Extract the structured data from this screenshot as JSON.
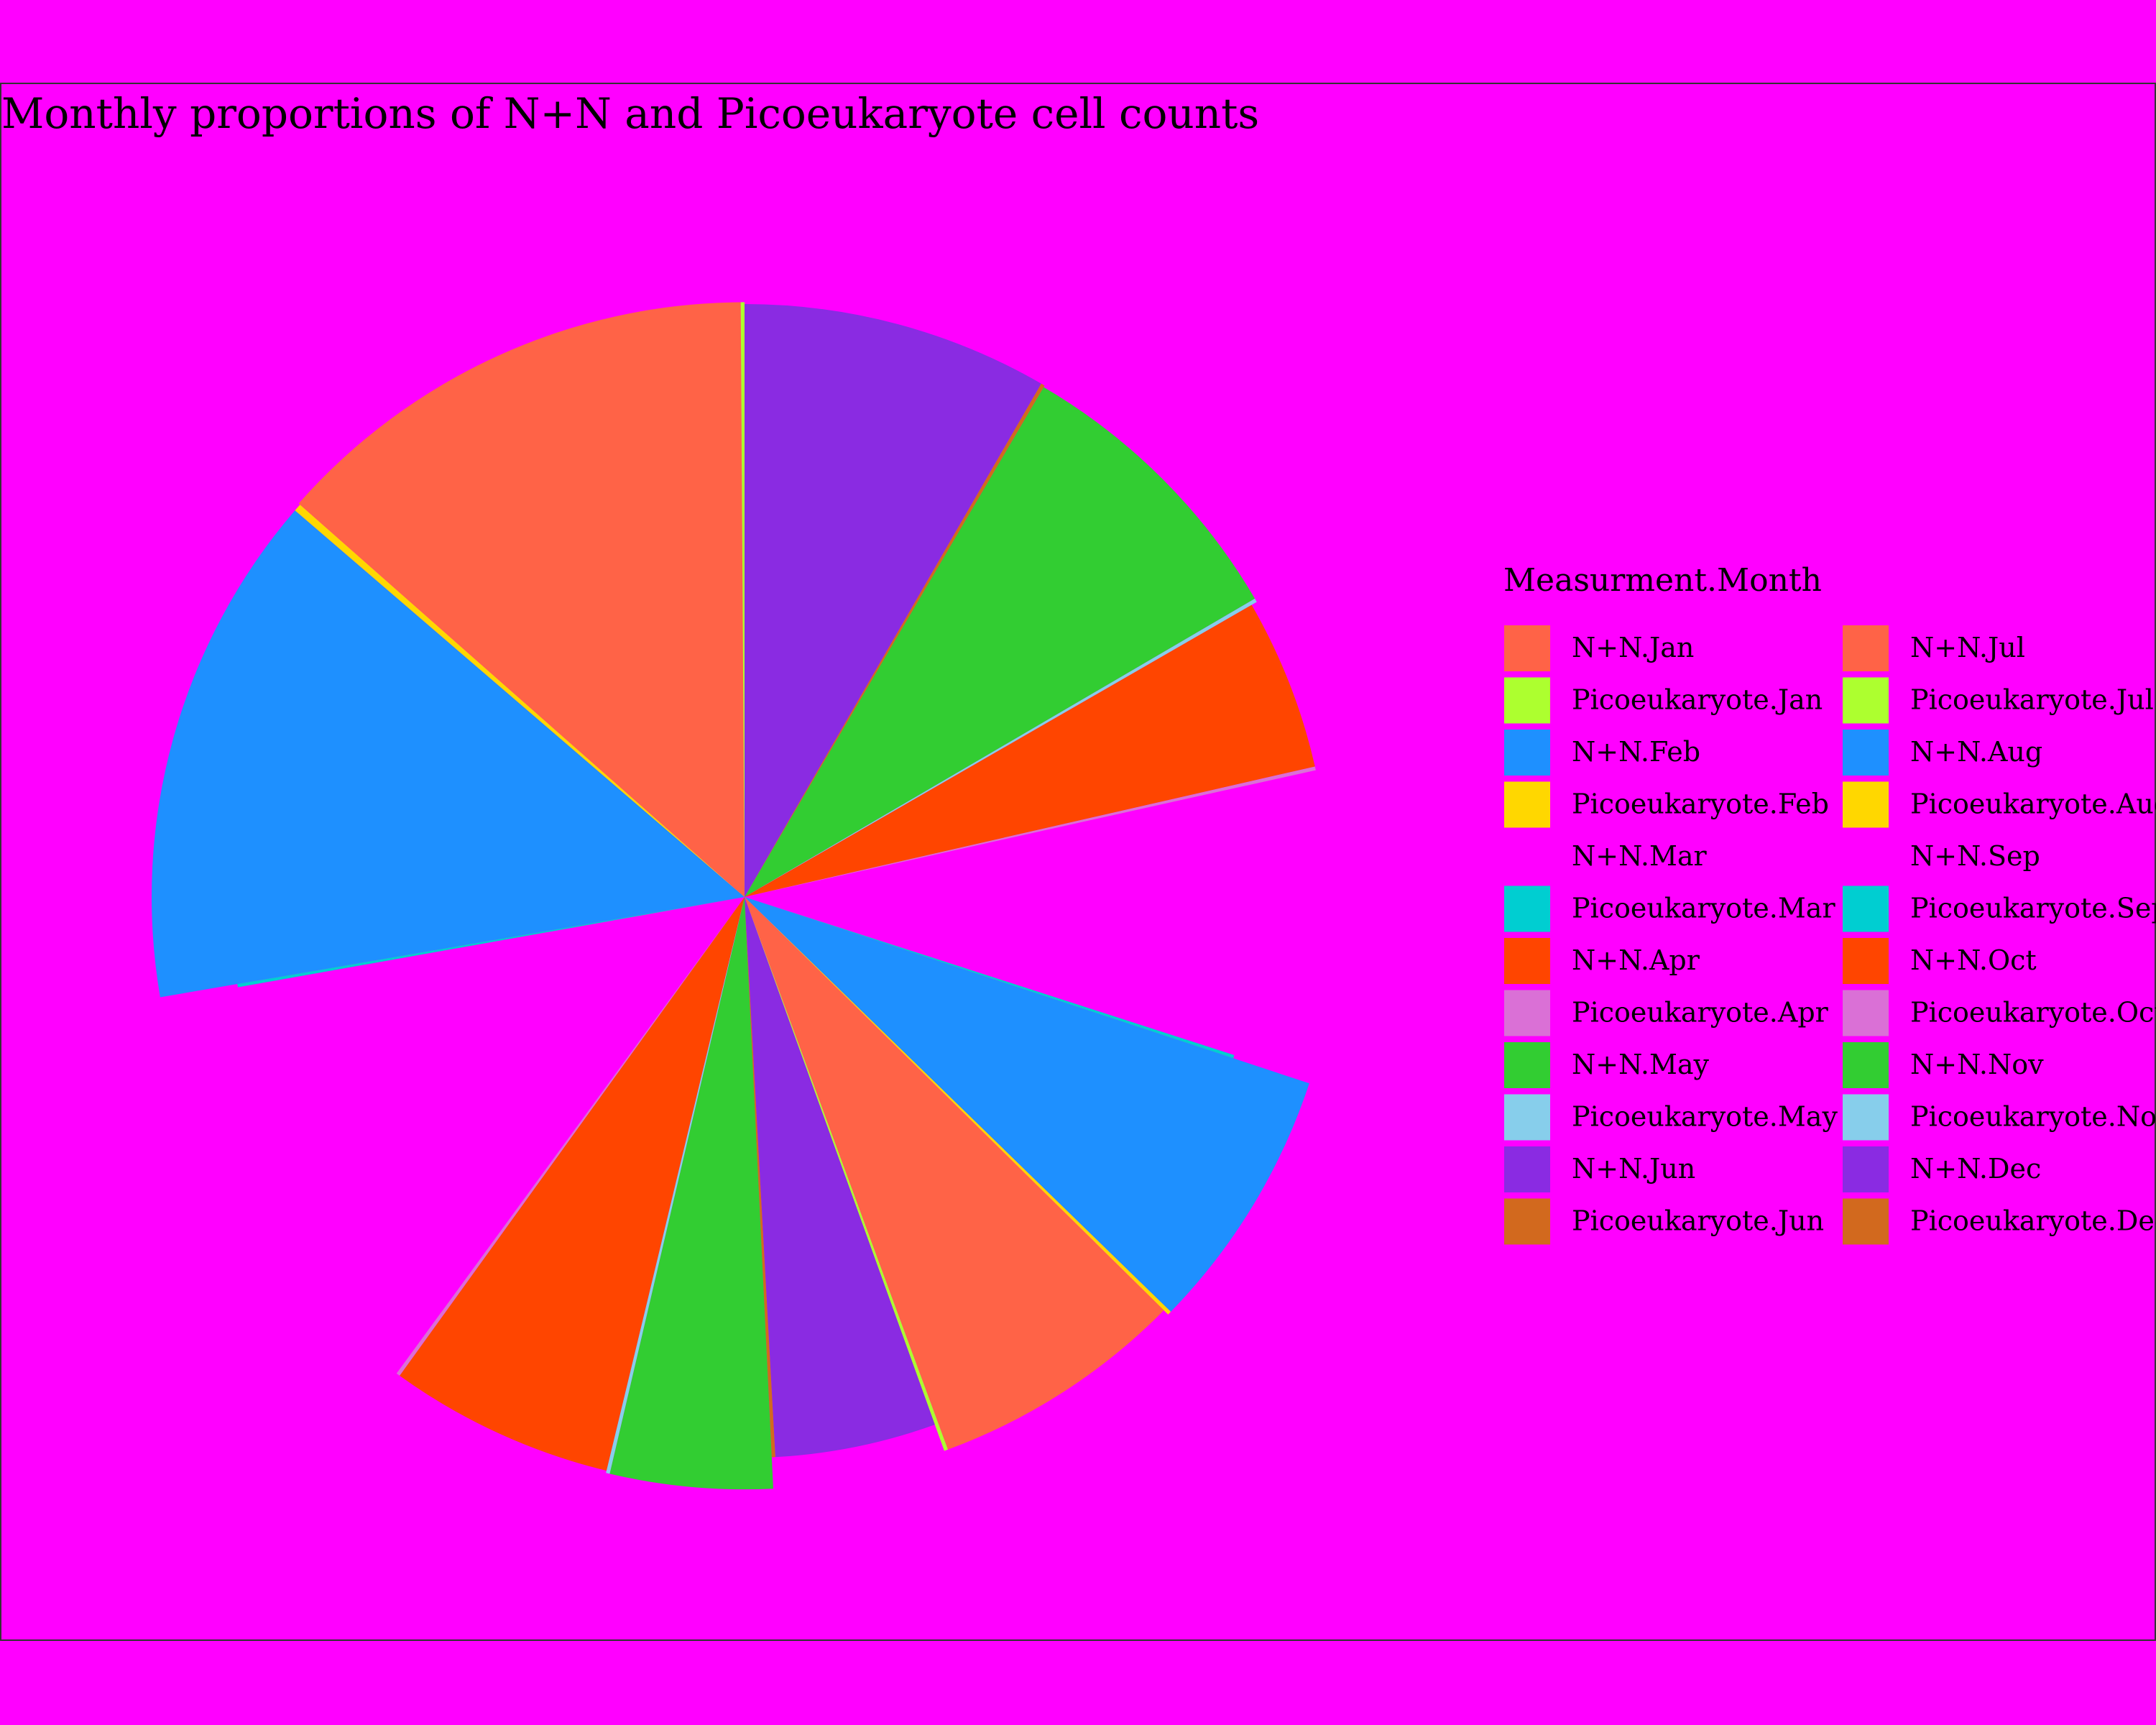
{
  "chart_data": {
    "type": "pie",
    "variant": "coxcomb (variable-radius wedges, equal angles per month)",
    "title": "Monthly proportions of N+N and Picoeukaryote cell counts",
    "legend": {
      "title": "Measurment.Month",
      "placement": "right",
      "columns": 2
    },
    "start_angle_deg": 0,
    "direction": "clockwise",
    "colors": {
      "background": "#ff00ff",
      "N+N.Jan": "#ff6347",
      "Picoeukaryote.Jan": "#adff2f",
      "N+N.Feb": "#1e90ff",
      "Picoeukaryote.Feb": "#ffd700",
      "N+N.Mar": "#ff00ff",
      "Picoeukaryote.Mar": "#00ced1",
      "N+N.Apr": "#ff4500",
      "Picoeukaryote.Apr": "#da70d6",
      "N+N.May": "#32cd32",
      "Picoeukaryote.May": "#87ceeb",
      "N+N.Jun": "#8a2be2",
      "Picoeukaryote.Jun": "#d2691e",
      "N+N.Jul": "#ff6347",
      "Picoeukaryote.Jul": "#adff2f",
      "N+N.Aug": "#1e90ff",
      "Picoeukaryote.Aug": "#ffd700",
      "N+N.Sep": "#ff00ff",
      "Picoeukaryote.Sep": "#00ced1",
      "N+N.Oct": "#ff4500",
      "Picoeukaryote.Oct": "#da70d6",
      "N+N.Nov": "#32cd32",
      "Picoeukaryote.Nov": "#87ceeb",
      "N+N.Dec": "#8a2be2",
      "Picoeukaryote.Dec": "#d2691e"
    },
    "slices": [
      {
        "label": "N+N.Dec",
        "value": 8.1,
        "radius": 1.0
      },
      {
        "label": "Picoeukaryote.Dec",
        "value": 0.1,
        "radius": 1.0
      },
      {
        "label": "N+N.Nov",
        "value": 7.9,
        "radius": 0.997
      },
      {
        "label": "Picoeukaryote.Nov",
        "value": 0.1,
        "radius": 0.997
      },
      {
        "label": "N+N.Oct",
        "value": 4.6,
        "radius": 0.987
      },
      {
        "label": "Picoeukaryote.Oct",
        "value": 0.1,
        "radius": 0.987
      },
      {
        "label": "N+N.Sep",
        "value": 8.2,
        "radius": 0.868
      },
      {
        "label": "Picoeukaryote.Sep",
        "value": 0.1,
        "radius": 0.868
      },
      {
        "label": "N+N.Aug",
        "value": 7.0,
        "radius": 1.003
      },
      {
        "label": "Picoeukaryote.Aug",
        "value": 0.1,
        "radius": 1.003
      },
      {
        "label": "N+N.Jul",
        "value": 6.8,
        "radius": 0.993
      },
      {
        "label": "Picoeukaryote.Jul",
        "value": 0.1,
        "radius": 0.993
      },
      {
        "label": "N+N.Jun",
        "value": 4.5,
        "radius": 0.946
      },
      {
        "label": "Picoeukaryote.Jun",
        "value": 0.1,
        "radius": 0.946
      },
      {
        "label": "N+N.May",
        "value": 4.3,
        "radius": 0.999
      },
      {
        "label": "Picoeukaryote.May",
        "value": 0.1,
        "radius": 0.999
      },
      {
        "label": "N+N.Apr",
        "value": 6.0,
        "radius": 0.995
      },
      {
        "label": "Picoeukaryote.Apr",
        "value": 0.1,
        "radius": 0.995
      },
      {
        "label": "N+N.Mar",
        "value": 11.8,
        "radius": 0.868
      },
      {
        "label": "Picoeukaryote.Mar",
        "value": 0.1,
        "radius": 0.868
      },
      {
        "label": "N+N.Feb",
        "value": 13.6,
        "radius": 1.0
      },
      {
        "label": "Picoeukaryote.Feb",
        "value": 0.2,
        "radius": 1.0
      },
      {
        "label": "N+N.Jan",
        "value": 13.0,
        "radius": 1.003
      },
      {
        "label": "Picoeukaryote.Jan",
        "value": 0.1,
        "radius": 1.003
      }
    ]
  }
}
